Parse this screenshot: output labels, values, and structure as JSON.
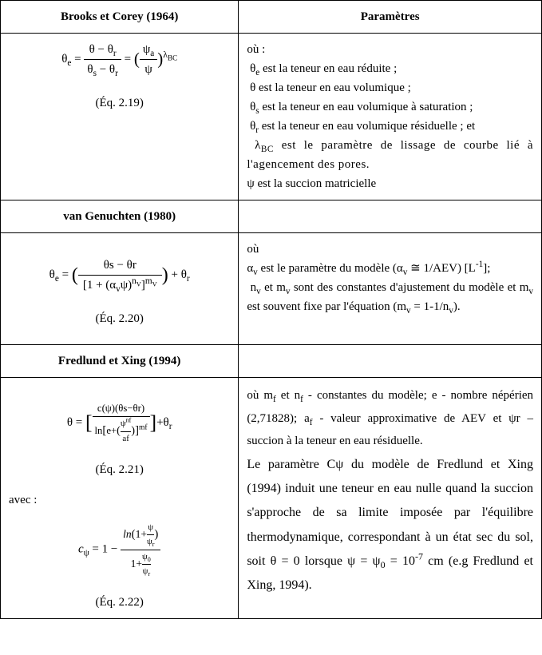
{
  "headers": {
    "left": "Brooks et Corey (1964)",
    "right": "Paramètres"
  },
  "brooks": {
    "eq_html": "θ<sub>e</sub> = <span style='display:inline-block;vertical-align:middle;'><span style='display:block;border-bottom:1px solid #000;padding:0 4px;'>θ − θ<sub>r</sub></span><span style='display:block;padding:0 4px;'>θ<sub>s</sub> − θ<sub>r</sub></span></span> = <span style='font-size:1.4em;vertical-align:middle;'>(</span><span style='display:inline-block;vertical-align:middle;'><span style='display:block;border-bottom:1px solid #000;padding:0 4px;'>ψ<sub>a</sub></span><span style='display:block;padding:0 4px;'>ψ</span></span><span style='font-size:1.4em;vertical-align:middle;'>)</span><sup style='font-size:0.8em;'>λ<sub>BC</sub></sup>",
    "eq_label": "(Éq. 2.19)",
    "params_intro": "où :",
    "param1": "&nbsp;θ<sub>e</sub> est  la teneur en eau réduite ;",
    "param2": "&nbsp;θ est  la  teneur en eau volumique ;",
    "param3": "&nbsp;θ<sub>s</sub> est  la teneur en eau volumique à saturation ;",
    "param4": "&nbsp;θ<sub>r</sub> est  la teneur en eau volumique résiduelle ; et",
    "param5": "&nbsp;λ<sub>BC</sub>  est  le  paramètre de lissage de courbe lié à l'agencement des pores.",
    "param6": "ψ est la succion matricielle"
  },
  "vg": {
    "header": "van Genuchten (1980)",
    "eq_html": "θ<sub>e</sub> = <span style='font-size:1.6em;vertical-align:middle;'>(</span><span style='display:inline-block;vertical-align:middle;'><span style='display:block;border-bottom:1px solid #000;padding:0 6px;'>θs − θr</span><span style='display:block;padding:0 6px;'>[1 + (α<sub>v</sub>ψ)<sup>n<sub>V</sub></sup>]<sup>m<sub>V</sub></sup></span></span><span style='font-size:1.6em;vertical-align:middle;'>)</span> +  θ<sub>r</sub>",
    "eq_label": "(Éq. 2.20)",
    "params_intro": "où",
    "param1": "α<sub>v</sub> est le paramètre du modèle (α<sub>v</sub> ≅ 1/AEV) [L<sup>-1</sup>];",
    "param2": "&nbsp;n<sub>v</sub> et m<sub>v</sub> sont des constantes d'ajustement du modèle et m<sub>v</sub> est souvent fixe par l'équation (m<sub>v</sub> = 1-1/n<sub>v</sub>)."
  },
  "fx": {
    "header": "Fredlund et Xing (1994)",
    "eq1_html": "θ = <span style='font-size:1.7em;vertical-align:middle;'>[</span><span style='display:inline-block;vertical-align:middle;font-size:0.85em;'><span style='display:block;border-bottom:1px solid #000;padding:0 3px;'>c(ψ)(θs−θr)</span><span style='display:block;padding:0 3px;'>ln<span style='font-size:1.15em;'>[</span>e+<span style='font-size:1.1em;'>(</span><span style='display:inline-block;vertical-align:middle;font-size:0.85em;'><span style='display:block;border-bottom:1px solid #000;'>ψ<sup>nf</sup></span><span style='display:block;'>af</span></span><span style='font-size:1.1em;'>)</span><span style='font-size:1.15em;'>]</span><sup>mf</sup></span></span><span style='font-size:1.7em;vertical-align:middle;'>]</span>+θ<sub>r</sub>",
    "eq1_label": "(Éq. 2.21)",
    "avec": "avec :",
    "eq2_html": "<i>c</i><sub>ψ</sub> = 1 − <span style='display:inline-block;vertical-align:middle;font-size:0.9em;'><span style='display:block;border-bottom:1px solid #000;padding:0 3px;'><i>ln</i><span style='font-size:1.1em;'>(</span>1+<span style='display:inline-block;vertical-align:middle;font-size:0.8em;'><span style='display:block;border-bottom:1px solid #000;'>ψ</span><span style='display:block;'>ψ<sub>r</sub></span></span><span style='font-size:1.1em;'>)</span></span><span style='display:block;padding:0 3px;'>1+<span style='display:inline-block;vertical-align:middle;font-size:0.8em;'><span style='display:block;border-bottom:1px solid #000;'>ψ<sub>0</sub></span><span style='display:block;'>ψ<sub>r</sub></span></span></span></span>",
    "eq2_label": "(Éq. 2.22)",
    "param1": "où m<sub>f</sub> et n<sub>f</sub> - constantes du modèle;  e - nombre népérien (2,71828);  a<sub>f</sub> - valeur approximative de AEV et  ψr – succion à la teneur en eau résiduelle.",
    "param2": "Le paramètre Cψ du modèle de Fredlund et Xing (1994) induit une teneur en eau nulle quand la succion s'approche de sa limite imposée par l'équilibre thermodynamique, correspondant à un état sec du sol, soit θ = 0 lorsque ψ = ψ<sub>0</sub> = 10<sup>-7</sup> cm (e.g Fredlund  et Xing, 1994)."
  }
}
